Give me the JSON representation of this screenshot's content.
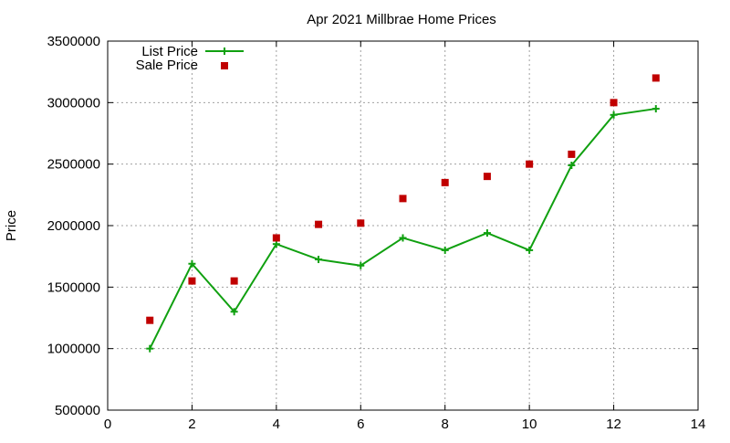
{
  "chart_data": {
    "type": "line",
    "title": "Apr 2021 Millbrae Home Prices",
    "xlabel": "",
    "ylabel": "Price",
    "xlim": [
      0,
      14
    ],
    "ylim": [
      500000,
      3500000
    ],
    "x_ticks": [
      0,
      2,
      4,
      6,
      8,
      10,
      12,
      14
    ],
    "y_ticks": [
      500000,
      1000000,
      1500000,
      2000000,
      2500000,
      3000000,
      3500000
    ],
    "grid": true,
    "legend_position": "top-left",
    "series": [
      {
        "name": "List Price",
        "style": "line-with-plus-markers",
        "color": "#10a010",
        "x": [
          1,
          2,
          3,
          4,
          5,
          6,
          7,
          8,
          9,
          10,
          11,
          12,
          13
        ],
        "values": [
          1000000,
          1690000,
          1300000,
          1850000,
          1725000,
          1675000,
          1900000,
          1800000,
          1940000,
          1800000,
          2490000,
          2900000,
          2950000
        ]
      },
      {
        "name": "Sale Price",
        "style": "square-markers",
        "color": "#c00000",
        "x": [
          1,
          2,
          3,
          4,
          5,
          6,
          7,
          8,
          9,
          10,
          11,
          12,
          13
        ],
        "values": [
          1230000,
          1550000,
          1550000,
          1900000,
          2010000,
          2020000,
          2220000,
          2350000,
          2400000,
          2500000,
          2580000,
          3000000,
          3200000
        ]
      }
    ]
  }
}
